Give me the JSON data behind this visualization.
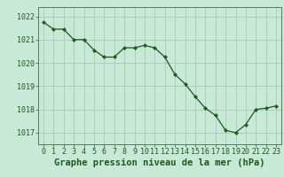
{
  "x": [
    0,
    1,
    2,
    3,
    4,
    5,
    6,
    7,
    8,
    9,
    10,
    11,
    12,
    13,
    14,
    15,
    16,
    17,
    18,
    19,
    20,
    21,
    22,
    23
  ],
  "y": [
    1021.75,
    1021.45,
    1021.45,
    1021.0,
    1021.0,
    1020.55,
    1020.25,
    1020.25,
    1020.65,
    1020.65,
    1020.75,
    1020.65,
    1020.25,
    1019.5,
    1019.1,
    1018.55,
    1018.05,
    1017.75,
    1017.1,
    1017.0,
    1017.35,
    1018.0,
    1018.05,
    1018.15
  ],
  "line_color": "#1a5c1a",
  "marker_color": "#1a5c1a",
  "bg_color": "#c8e8d8",
  "grid_color": "#b0ccbc",
  "axis_color": "#1a5c1a",
  "spine_color": "#5a7a5a",
  "title": "Graphe pression niveau de la mer (hPa)",
  "ylim_min": 1016.5,
  "ylim_max": 1022.4,
  "yticks": [
    1017,
    1018,
    1019,
    1020,
    1021,
    1022
  ],
  "xticks": [
    0,
    1,
    2,
    3,
    4,
    5,
    6,
    7,
    8,
    9,
    10,
    11,
    12,
    13,
    14,
    15,
    16,
    17,
    18,
    19,
    20,
    21,
    22,
    23
  ],
  "tick_fontsize": 6.0,
  "title_fontsize": 7.5
}
